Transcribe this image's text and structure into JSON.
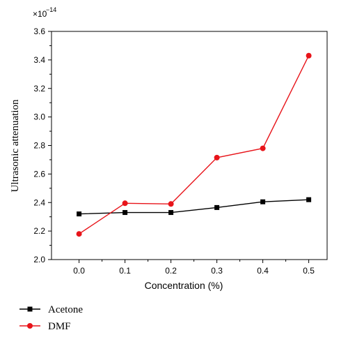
{
  "chart_data": {
    "type": "line",
    "title": "",
    "xlabel": "Concentration (%)",
    "ylabel": "Ultrasonic attenuation",
    "y_multiplier_base": "×10",
    "y_multiplier_exponent": "−14",
    "x": [
      0.0,
      0.1,
      0.2,
      0.3,
      0.4,
      0.5
    ],
    "x_tick_labels": [
      "0.0",
      "0.1",
      "0.2",
      "0.3",
      "0.4",
      "0.5"
    ],
    "xlim": [
      -0.06,
      0.54
    ],
    "ylim": [
      2.0,
      3.6
    ],
    "y_ticks": [
      2.0,
      2.2,
      2.4,
      2.6,
      2.8,
      3.0,
      3.2,
      3.4,
      3.6
    ],
    "y_tick_labels": [
      "2.0",
      "2.2",
      "2.4",
      "2.6",
      "2.8",
      "3.0",
      "3.2",
      "3.4",
      "3.6"
    ],
    "grid": false,
    "legend_position": "bottom-left, below plot",
    "series": [
      {
        "name": "Acetone",
        "color": "#000000",
        "marker": "square",
        "values": [
          2.32,
          2.33,
          2.33,
          2.365,
          2.405,
          2.42
        ]
      },
      {
        "name": "DMF",
        "color": "#e8141a",
        "marker": "circle",
        "values": [
          2.18,
          2.395,
          2.39,
          2.715,
          2.78,
          3.43
        ]
      }
    ]
  }
}
